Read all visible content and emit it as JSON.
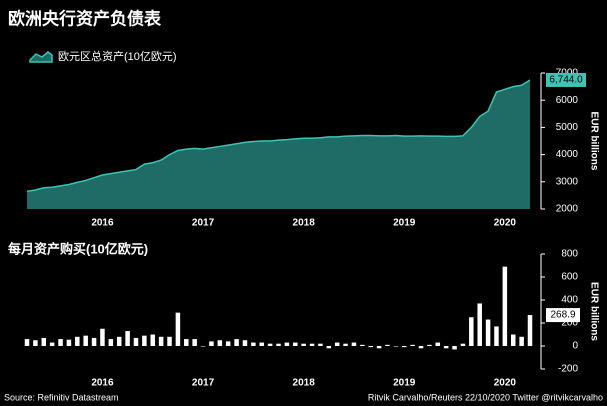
{
  "title": "欧洲央行资产负债表",
  "source": "Source: Refinitiv Datastream",
  "credit": "Ritvik Carvalho/Reuters 22/10/2020 Twitter @ritvikcarvalho",
  "chart_data": [
    {
      "type": "area",
      "y_label": "EUR billions",
      "categories": [
        null,
        null,
        null,
        null,
        null,
        null,
        null,
        null,
        null,
        "2016",
        null,
        null,
        null,
        null,
        null,
        null,
        null,
        null,
        null,
        null,
        null,
        "2017",
        null,
        null,
        null,
        null,
        null,
        null,
        null,
        null,
        null,
        null,
        null,
        "2018",
        null,
        null,
        null,
        null,
        null,
        null,
        null,
        null,
        null,
        null,
        null,
        "2019",
        null,
        null,
        null,
        null,
        null,
        null,
        null,
        null,
        null,
        null,
        null,
        "2020",
        null,
        null,
        null
      ],
      "series": [
        {
          "name": "欧元区总资产(10亿欧元)",
          "color": "#1f6b66",
          "line_color": "#3cc4b4",
          "values": [
            2650,
            2700,
            2780,
            2800,
            2850,
            2900,
            2980,
            3050,
            3150,
            3250,
            3300,
            3350,
            3400,
            3450,
            3650,
            3700,
            3800,
            4000,
            4150,
            4200,
            4230,
            4200,
            4250,
            4300,
            4350,
            4400,
            4450,
            4480,
            4500,
            4500,
            4530,
            4550,
            4580,
            4600,
            4600,
            4620,
            4650,
            4650,
            4680,
            4690,
            4700,
            4700,
            4690,
            4690,
            4700,
            4680,
            4680,
            4690,
            4680,
            4680,
            4670,
            4670,
            4690,
            5000,
            5400,
            5600,
            6300,
            6400,
            6500,
            6550,
            6744
          ],
          "value_labels": [
            null,
            null,
            null,
            null,
            null,
            null,
            null,
            null,
            null,
            null,
            null,
            null,
            null,
            null,
            null,
            null,
            null,
            null,
            null,
            null,
            null,
            null,
            null,
            null,
            null,
            null,
            null,
            null,
            null,
            null,
            null,
            null,
            null,
            null,
            null,
            null,
            null,
            null,
            null,
            null,
            null,
            null,
            null,
            null,
            null,
            null,
            null,
            null,
            null,
            null,
            null,
            null,
            null,
            null,
            null,
            null,
            null,
            null,
            null,
            null,
            "6,744.0"
          ]
        }
      ],
      "ylim": [
        2000,
        7000
      ],
      "yticks": [
        2000,
        3000,
        4000,
        5000,
        6000,
        7000
      ]
    },
    {
      "type": "bar",
      "title": "每月资产购买(10亿欧元)",
      "y_label": "EUR billions",
      "color": "#ffffff",
      "categories": [
        null,
        null,
        null,
        null,
        null,
        null,
        null,
        null,
        null,
        "2016",
        null,
        null,
        null,
        null,
        null,
        null,
        null,
        null,
        null,
        null,
        null,
        "2017",
        null,
        null,
        null,
        null,
        null,
        null,
        null,
        null,
        null,
        null,
        null,
        "2018",
        null,
        null,
        null,
        null,
        null,
        null,
        null,
        null,
        null,
        null,
        null,
        "2019",
        null,
        null,
        null,
        null,
        null,
        null,
        null,
        null,
        null,
        null,
        null,
        "2020",
        null,
        null,
        null
      ],
      "values": [
        60,
        50,
        70,
        30,
        60,
        55,
        80,
        90,
        70,
        150,
        60,
        80,
        130,
        70,
        90,
        100,
        80,
        80,
        290,
        60,
        60,
        0,
        40,
        50,
        40,
        60,
        50,
        30,
        30,
        20,
        20,
        30,
        30,
        20,
        20,
        20,
        -20,
        30,
        20,
        30,
        10,
        -10,
        -20,
        10,
        0,
        -10,
        10,
        -20,
        10,
        30,
        -20,
        -30,
        20,
        250,
        370,
        230,
        170,
        690,
        100,
        80,
        268.9
      ],
      "ylim": [
        -200,
        800
      ],
      "yticks": [
        -200,
        0,
        200,
        400,
        600,
        800
      ]
    }
  ]
}
